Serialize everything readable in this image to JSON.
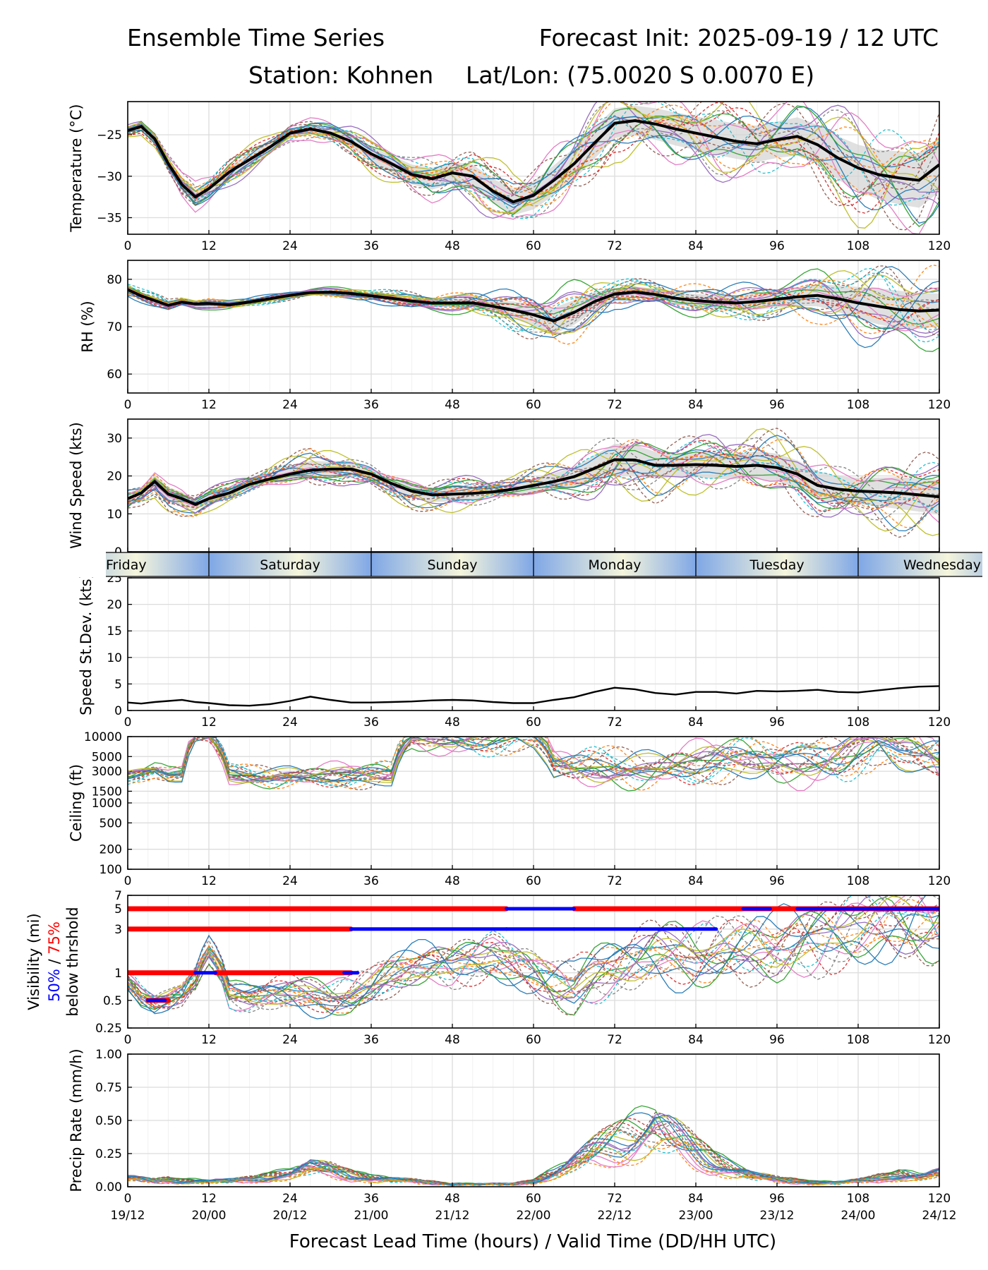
{
  "header": {
    "title_left": "Ensemble Time Series",
    "title_right": "Forecast Init: 2025-09-19 / 12 UTC",
    "station": "Station: Kohnen",
    "latlon": "Lat/Lon: (75.0020 S 0.0070 E)"
  },
  "x_axis": {
    "ticks": [
      "0",
      "12",
      "24",
      "36",
      "48",
      "60",
      "72",
      "84",
      "96",
      "108",
      "120"
    ],
    "valid_times": [
      "19/12",
      "20/00",
      "20/12",
      "21/00",
      "21/12",
      "22/00",
      "22/12",
      "23/00",
      "23/12",
      "24/00",
      "24/12"
    ],
    "label": "Forecast Lead Time (hours) / Valid Time (DD/HH UTC)",
    "range": [
      0,
      120
    ]
  },
  "days": [
    "Friday",
    "Saturday",
    "Sunday",
    "Monday",
    "Tuesday",
    "Wednesday"
  ],
  "colors": {
    "mean": "#000000",
    "band": "#d3d3d3",
    "p50": "#0000ff",
    "p75": "#ff0000",
    "members": [
      "#1f77b4",
      "#ff7f0e",
      "#2ca02c",
      "#d62728",
      "#9467bd",
      "#8c564b",
      "#e377c2",
      "#7f7f7f",
      "#bcbd22",
      "#17becf"
    ]
  },
  "chart_data": [
    {
      "id": "temperature",
      "type": "line",
      "ylabel": "Temperature (°C)",
      "ylim": [
        -37,
        -21
      ],
      "yticks": [
        "−25",
        "−30",
        "−35"
      ],
      "ytick_values": [
        -25,
        -30,
        -35
      ],
      "x": [
        0,
        2,
        4,
        6,
        8,
        10,
        12,
        15,
        18,
        21,
        24,
        27,
        30,
        33,
        36,
        39,
        42,
        45,
        48,
        51,
        54,
        57,
        60,
        63,
        66,
        69,
        72,
        75,
        78,
        81,
        84,
        87,
        90,
        93,
        96,
        99,
        102,
        105,
        108,
        111,
        114,
        117,
        120
      ],
      "mean": [
        -24.5,
        -24.0,
        -25.5,
        -28.5,
        -31.0,
        -32.5,
        -31.5,
        -29.5,
        -28.0,
        -26.5,
        -24.8,
        -24.3,
        -24.8,
        -25.8,
        -27.3,
        -28.5,
        -29.8,
        -30.3,
        -29.6,
        -30.0,
        -31.8,
        -33.1,
        -32.3,
        -30.5,
        -28.5,
        -26.0,
        -23.6,
        -23.3,
        -23.7,
        -24.3,
        -24.8,
        -25.3,
        -25.8,
        -26.1,
        -25.6,
        -25.2,
        -26.2,
        -27.8,
        -29.0,
        -29.8,
        -30.2,
        -30.5,
        -28.6
      ],
      "spread": [
        0.3,
        0.4,
        0.5,
        0.6,
        0.7,
        0.8,
        0.8,
        0.8,
        0.7,
        0.6,
        0.6,
        0.6,
        0.7,
        0.8,
        0.9,
        1.0,
        1.2,
        1.3,
        1.3,
        1.4,
        1.5,
        1.6,
        1.7,
        1.8,
        1.9,
        1.9,
        1.8,
        1.8,
        1.9,
        2.0,
        2.0,
        2.1,
        2.1,
        2.2,
        2.2,
        2.3,
        2.4,
        2.6,
        2.8,
        3.0,
        3.2,
        3.3,
        3.3
      ]
    },
    {
      "id": "rh",
      "type": "line",
      "ylabel": "RH (%)",
      "ylim": [
        56,
        84
      ],
      "yticks": [
        "80",
        "70",
        "60"
      ],
      "ytick_values": [
        80,
        70,
        60
      ],
      "x": [
        0,
        2,
        4,
        6,
        8,
        10,
        12,
        15,
        18,
        21,
        24,
        27,
        30,
        33,
        36,
        39,
        42,
        45,
        48,
        51,
        54,
        57,
        60,
        63,
        66,
        69,
        72,
        75,
        78,
        81,
        84,
        87,
        90,
        93,
        96,
        99,
        102,
        105,
        108,
        111,
        114,
        117,
        120
      ],
      "mean": [
        77.8,
        76.5,
        75.5,
        74.5,
        75.2,
        74.8,
        74.9,
        74.6,
        75.2,
        75.9,
        76.6,
        77.2,
        77.3,
        77.0,
        76.5,
        76.0,
        75.4,
        75.0,
        75.0,
        75.0,
        74.3,
        73.5,
        72.5,
        71.2,
        73.0,
        75.3,
        76.9,
        77.3,
        76.8,
        76.0,
        75.5,
        75.2,
        75.0,
        75.3,
        75.8,
        76.3,
        76.6,
        75.9,
        75.0,
        74.3,
        73.6,
        73.3,
        73.5
      ],
      "spread": [
        0.7,
        0.6,
        0.6,
        0.5,
        0.5,
        0.5,
        0.5,
        0.4,
        0.4,
        0.4,
        0.4,
        0.4,
        0.4,
        0.5,
        0.6,
        0.7,
        0.8,
        0.8,
        0.9,
        1.0,
        1.3,
        1.8,
        2.3,
        2.8,
        2.6,
        2.0,
        1.3,
        1.2,
        1.2,
        1.3,
        1.4,
        1.5,
        1.6,
        1.7,
        1.8,
        2.0,
        2.3,
        2.8,
        3.4,
        3.8,
        4.0,
        3.8,
        3.5
      ]
    },
    {
      "id": "wind",
      "type": "line",
      "ylabel": "Wind Speed (kts)",
      "ylim": [
        0,
        35
      ],
      "yticks": [
        "0",
        "10",
        "20",
        "30"
      ],
      "ytick_values": [
        0,
        10,
        20,
        30
      ],
      "x": [
        0,
        2,
        4,
        6,
        8,
        10,
        12,
        15,
        18,
        21,
        24,
        27,
        30,
        33,
        36,
        39,
        42,
        45,
        48,
        51,
        54,
        57,
        60,
        63,
        66,
        69,
        72,
        75,
        78,
        81,
        84,
        87,
        90,
        93,
        96,
        99,
        102,
        105,
        108,
        111,
        114,
        117,
        120
      ],
      "mean": [
        14.0,
        15.5,
        18.5,
        15.2,
        14.0,
        12.5,
        14.0,
        15.5,
        17.8,
        19.2,
        20.5,
        21.5,
        21.8,
        21.8,
        20.5,
        18.0,
        16.0,
        15.0,
        15.2,
        15.4,
        15.8,
        16.5,
        17.5,
        18.5,
        19.8,
        22.0,
        24.3,
        24.2,
        22.8,
        22.8,
        23.0,
        22.8,
        22.5,
        22.8,
        22.2,
        20.5,
        17.5,
        16.5,
        16.0,
        15.8,
        15.5,
        15.0,
        14.5
      ],
      "spread": [
        1.5,
        1.5,
        1.8,
        1.8,
        1.8,
        1.5,
        1.4,
        1.2,
        1.2,
        1.3,
        1.8,
        2.5,
        2.0,
        1.6,
        1.6,
        1.6,
        1.8,
        1.8,
        2.0,
        1.9,
        1.6,
        1.4,
        1.8,
        2.2,
        2.6,
        3.5,
        4.2,
        4.0,
        3.6,
        3.0,
        3.4,
        3.6,
        3.4,
        3.7,
        3.7,
        3.6,
        3.8,
        3.5,
        3.5,
        3.8,
        4.2,
        4.4,
        4.5
      ]
    },
    {
      "id": "speed_sd",
      "type": "line",
      "ylabel": "Speed St.Dev. (kts)",
      "ylim": [
        0,
        25
      ],
      "yticks": [
        "0",
        "5",
        "10",
        "15",
        "20",
        "25"
      ],
      "ytick_values": [
        0,
        5,
        10,
        15,
        20,
        25
      ],
      "x": [
        0,
        2,
        4,
        6,
        8,
        10,
        12,
        15,
        18,
        21,
        24,
        27,
        30,
        33,
        36,
        39,
        42,
        45,
        48,
        51,
        54,
        57,
        60,
        63,
        66,
        69,
        72,
        75,
        78,
        81,
        84,
        87,
        90,
        93,
        96,
        99,
        102,
        105,
        108,
        111,
        114,
        117,
        120
      ],
      "values": [
        1.5,
        1.3,
        1.6,
        1.8,
        2.0,
        1.6,
        1.4,
        1.0,
        0.9,
        1.2,
        1.8,
        2.6,
        2.0,
        1.5,
        1.5,
        1.6,
        1.7,
        1.9,
        2.0,
        1.9,
        1.6,
        1.4,
        1.4,
        2.0,
        2.5,
        3.5,
        4.3,
        4.0,
        3.3,
        3.0,
        3.5,
        3.5,
        3.2,
        3.7,
        3.6,
        3.7,
        3.9,
        3.5,
        3.4,
        3.8,
        4.2,
        4.5,
        4.6
      ]
    },
    {
      "id": "ceiling",
      "type": "line",
      "ylabel": "Ceiling (ft)",
      "scale": "log",
      "ylim": [
        100,
        10000
      ],
      "yticks": [
        "10000",
        "5000",
        "3000",
        "1500",
        "1000",
        "500",
        "200",
        "100"
      ],
      "ytick_values": [
        10000,
        5000,
        3000,
        1500,
        1000,
        500,
        200,
        100
      ],
      "x": [
        0,
        2,
        4,
        6,
        8,
        10,
        12,
        15,
        18,
        21,
        24,
        27,
        30,
        33,
        36,
        39,
        42,
        45,
        48,
        51,
        54,
        57,
        60,
        63,
        66,
        69,
        72,
        75,
        78,
        81,
        84,
        87,
        90,
        93,
        96,
        99,
        102,
        105,
        108,
        111,
        114,
        117,
        120
      ],
      "typical": [
        2600,
        2800,
        3000,
        2500,
        2600,
        10000,
        10000,
        2700,
        2600,
        2600,
        2700,
        2600,
        2500,
        2400,
        2400,
        2500,
        10000,
        10000,
        10000,
        10000,
        10000,
        10000,
        10000,
        3500,
        3200,
        3300,
        3500,
        3700,
        3600,
        3800,
        3700,
        3900,
        4000,
        4100,
        4200,
        4500,
        5000,
        5500,
        7000,
        8000,
        6000,
        5000,
        4000
      ]
    },
    {
      "id": "visibility",
      "type": "line",
      "ylabel": "Visibility (mi)",
      "ylabel_p50": "50%",
      "ylabel_sep": " / ",
      "ylabel_p75": "75%",
      "ylabel_line3": "below thrshold",
      "scale": "log",
      "ylim": [
        0.25,
        7
      ],
      "yticks": [
        "7",
        "5",
        "3",
        "1",
        "0.5",
        "0.25"
      ],
      "ytick_values": [
        7,
        5,
        3,
        1,
        0.5,
        0.25
      ],
      "x": [
        0,
        2,
        4,
        6,
        8,
        10,
        12,
        15,
        18,
        21,
        24,
        27,
        30,
        33,
        36,
        39,
        42,
        45,
        48,
        51,
        54,
        57,
        60,
        63,
        66,
        69,
        72,
        75,
        78,
        81,
        84,
        87,
        90,
        93,
        96,
        99,
        102,
        105,
        108,
        111,
        114,
        117,
        120
      ],
      "typical": [
        0.8,
        0.55,
        0.45,
        0.5,
        0.6,
        0.9,
        1.8,
        0.6,
        0.55,
        0.6,
        0.6,
        0.55,
        0.5,
        0.55,
        0.7,
        1.0,
        1.2,
        1.3,
        1.2,
        1.4,
        1.5,
        1.2,
        1.0,
        0.8,
        0.7,
        1.0,
        1.2,
        1.4,
        1.6,
        1.5,
        1.4,
        1.6,
        1.8,
        2.0,
        1.9,
        2.2,
        2.4,
        2.8,
        3.0,
        3.2,
        3.4,
        3.6,
        3.5
      ],
      "thresholds": [
        5,
        3,
        1,
        0.5
      ],
      "flags": [
        {
          "threshold": 5,
          "p75": [
            [
              0,
              56
            ],
            [
              66,
              120
            ]
          ],
          "p50": [
            [
              56,
              66
            ],
            [
              91,
              95
            ],
            [
              99,
              120
            ]
          ]
        },
        {
          "threshold": 3,
          "p75": [
            [
              0,
              33
            ]
          ],
          "p50": [
            [
              33,
              56
            ],
            [
              56,
              66
            ],
            [
              66,
              87
            ]
          ]
        },
        {
          "threshold": 1,
          "p75": [
            [
              0,
              10
            ],
            [
              13,
              33
            ]
          ],
          "p50": [
            [
              10,
              13
            ],
            [
              32,
              34
            ]
          ]
        },
        {
          "threshold": 0.5,
          "p75": [
            [
              3,
              6
            ]
          ],
          "p50": [
            [
              3,
              5.5
            ]
          ]
        }
      ]
    },
    {
      "id": "precip",
      "type": "line",
      "ylabel": "Precip Rate (mm/h)",
      "ylim": [
        0,
        1
      ],
      "yticks": [
        "0.00",
        "0.25",
        "0.50",
        "0.75",
        "1.00"
      ],
      "ytick_values": [
        0,
        0.25,
        0.5,
        0.75,
        1.0
      ],
      "x": [
        0,
        2,
        4,
        6,
        8,
        10,
        12,
        15,
        18,
        21,
        24,
        27,
        30,
        33,
        36,
        39,
        42,
        45,
        48,
        51,
        54,
        57,
        60,
        63,
        66,
        69,
        72,
        75,
        78,
        81,
        84,
        87,
        90,
        93,
        96,
        99,
        102,
        105,
        108,
        111,
        114,
        117,
        120
      ],
      "typical": [
        0.05,
        0.04,
        0.03,
        0.04,
        0.03,
        0.03,
        0.03,
        0.03,
        0.04,
        0.06,
        0.08,
        0.12,
        0.1,
        0.07,
        0.05,
        0.04,
        0.03,
        0.02,
        0.01,
        0.01,
        0.01,
        0.01,
        0.03,
        0.08,
        0.15,
        0.22,
        0.28,
        0.33,
        0.38,
        0.3,
        0.22,
        0.15,
        0.1,
        0.06,
        0.04,
        0.03,
        0.02,
        0.02,
        0.03,
        0.05,
        0.07,
        0.06,
        0.08
      ]
    }
  ]
}
